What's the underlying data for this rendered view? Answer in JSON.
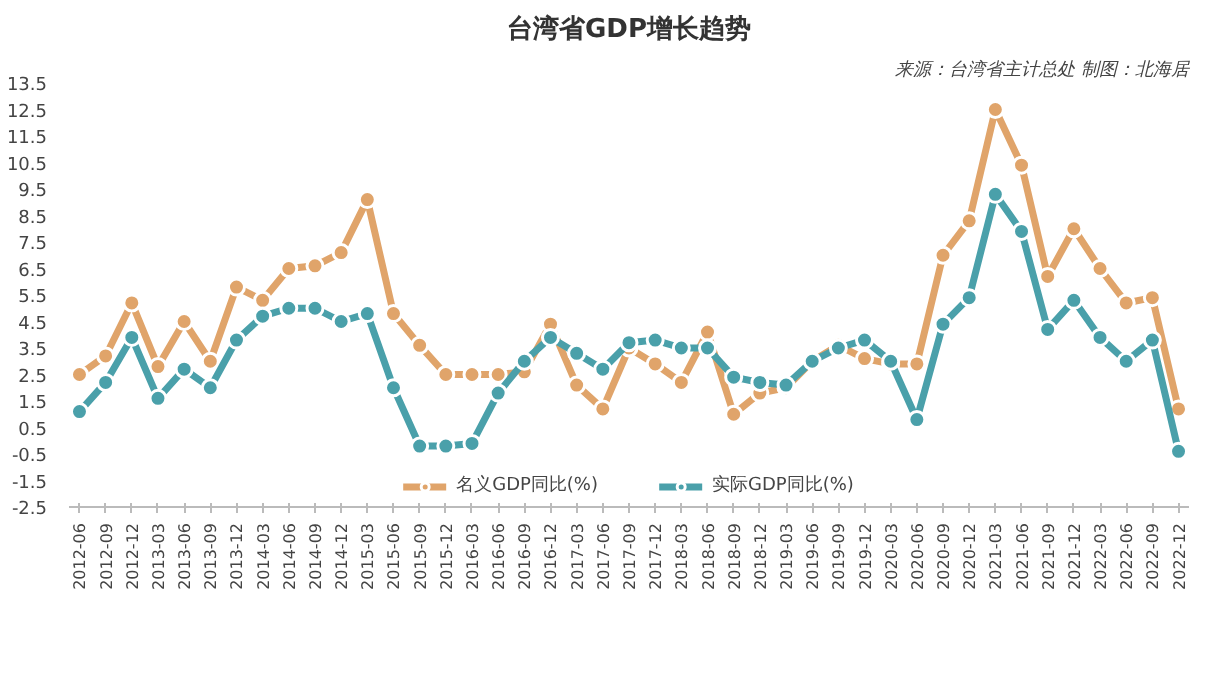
{
  "chart_data": {
    "type": "line",
    "title": "台湾省GDP增长趋势",
    "annotations": [
      "来源：台湾省主计总处 制图：北海居"
    ],
    "categories": [
      "2012-06",
      "2012-09",
      "2012-12",
      "2013-03",
      "2013-06",
      "2013-09",
      "2013-12",
      "2014-03",
      "2014-06",
      "2014-09",
      "2014-12",
      "2015-03",
      "2015-06",
      "2015-09",
      "2015-12",
      "2016-03",
      "2016-06",
      "2016-09",
      "2016-12",
      "2017-03",
      "2017-06",
      "2017-09",
      "2017-12",
      "2018-03",
      "2018-06",
      "2018-09",
      "2018-12",
      "2019-03",
      "2019-06",
      "2019-09",
      "2019-12",
      "2020-03",
      "2020-06",
      "2020-09",
      "2020-12",
      "2021-03",
      "2021-06",
      "2021-09",
      "2021-12",
      "2022-03",
      "2022-06",
      "2022-09",
      "2022-12"
    ],
    "series": [
      {
        "name": "名义GDP同比(%)",
        "color": "#e0a46a",
        "values": [
          2.5,
          3.2,
          5.2,
          2.8,
          4.5,
          3.0,
          5.8,
          5.3,
          6.5,
          6.6,
          7.1,
          9.1,
          4.8,
          3.6,
          2.5,
          2.5,
          2.5,
          2.6,
          4.4,
          2.1,
          1.2,
          3.5,
          2.9,
          2.2,
          4.1,
          1.0,
          1.8,
          2.0,
          3.0,
          3.6,
          3.1,
          2.9,
          2.9,
          7.0,
          8.3,
          12.5,
          10.4,
          6.2,
          8.0,
          6.5,
          5.2,
          5.4,
          1.2
        ]
      },
      {
        "name": "实际GDP同比(%)",
        "color": "#4aa0aa",
        "values": [
          1.1,
          2.2,
          3.9,
          1.6,
          2.7,
          2.0,
          3.8,
          4.7,
          5.0,
          5.0,
          4.5,
          4.8,
          2.0,
          -0.2,
          -0.2,
          -0.1,
          1.8,
          3.0,
          3.9,
          3.3,
          2.7,
          3.7,
          3.8,
          3.5,
          3.5,
          2.4,
          2.2,
          2.1,
          3.0,
          3.5,
          3.8,
          3.0,
          0.8,
          4.4,
          5.4,
          9.3,
          7.9,
          4.2,
          5.3,
          3.9,
          3.0,
          3.8,
          -0.4
        ]
      }
    ],
    "ylim": [
      -2.5,
      13.5
    ],
    "yticks": [
      -2.5,
      -1.5,
      -0.5,
      0.5,
      1.5,
      2.5,
      3.5,
      4.5,
      5.5,
      6.5,
      7.5,
      8.5,
      9.5,
      10.5,
      11.5,
      12.5,
      13.5
    ],
    "grid": false,
    "legend": "bottom",
    "marker": "circle",
    "line_style": "solid"
  }
}
